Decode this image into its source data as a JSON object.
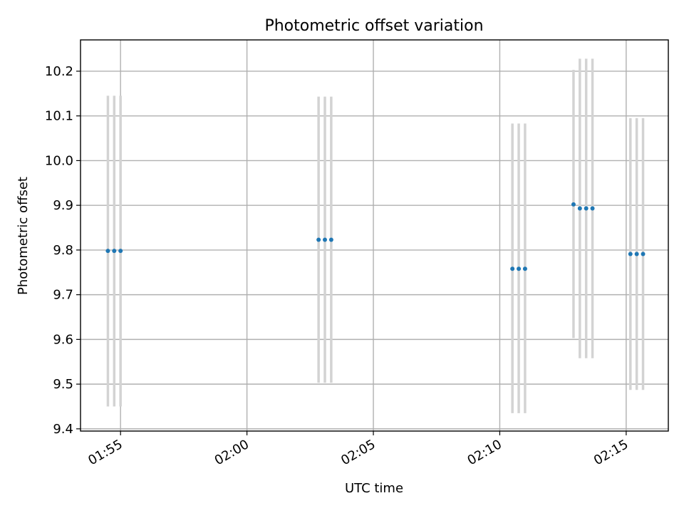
{
  "chart_data": {
    "type": "scatter",
    "title": "Photometric offset variation",
    "xlabel": "UTC time",
    "ylabel": "Photometric offset",
    "x_axis": {
      "kind": "time",
      "min": "01:53:25",
      "max": "02:16:40",
      "ticks": [
        "01:55",
        "02:00",
        "02:05",
        "02:10",
        "02:15"
      ]
    },
    "y_axis": {
      "min": 9.395,
      "max": 10.27,
      "ticks": [
        "9.4",
        "9.5",
        "9.6",
        "9.7",
        "9.8",
        "9.9",
        "10.0",
        "10.1",
        "10.2"
      ]
    },
    "grid": true,
    "series": [
      {
        "points": [
          {
            "time": "01:54:30",
            "y": 9.798,
            "yerr_low": 9.45,
            "yerr_high": 10.145
          },
          {
            "time": "01:54:45",
            "y": 9.798,
            "yerr_low": 9.45,
            "yerr_high": 10.145
          },
          {
            "time": "01:55:00",
            "y": 9.798,
            "yerr_low": 9.45,
            "yerr_high": 10.145
          },
          {
            "time": "02:02:50",
            "y": 9.823,
            "yerr_low": 9.503,
            "yerr_high": 10.143
          },
          {
            "time": "02:03:05",
            "y": 9.823,
            "yerr_low": 9.503,
            "yerr_high": 10.143
          },
          {
            "time": "02:03:20",
            "y": 9.823,
            "yerr_low": 9.503,
            "yerr_high": 10.143
          },
          {
            "time": "02:10:30",
            "y": 9.758,
            "yerr_low": 9.435,
            "yerr_high": 10.083
          },
          {
            "time": "02:10:45",
            "y": 9.758,
            "yerr_low": 9.435,
            "yerr_high": 10.083
          },
          {
            "time": "02:11:00",
            "y": 9.758,
            "yerr_low": 9.435,
            "yerr_high": 10.083
          },
          {
            "time": "02:12:55",
            "y": 9.902,
            "yerr_low": 9.603,
            "yerr_high": 10.203
          },
          {
            "time": "02:13:10",
            "y": 9.893,
            "yerr_low": 9.558,
            "yerr_high": 10.228
          },
          {
            "time": "02:13:25",
            "y": 9.893,
            "yerr_low": 9.558,
            "yerr_high": 10.228
          },
          {
            "time": "02:13:40",
            "y": 9.893,
            "yerr_low": 9.558,
            "yerr_high": 10.228
          },
          {
            "time": "02:15:10",
            "y": 9.791,
            "yerr_low": 9.487,
            "yerr_high": 10.095
          },
          {
            "time": "02:15:25",
            "y": 9.791,
            "yerr_low": 9.487,
            "yerr_high": 10.095
          },
          {
            "time": "02:15:40",
            "y": 9.791,
            "yerr_low": 9.487,
            "yerr_high": 10.095
          }
        ]
      }
    ],
    "colors": {
      "points": "#1f77b4",
      "errorbars": "#d3d3d3",
      "grid": "#b0b0b0"
    }
  }
}
